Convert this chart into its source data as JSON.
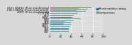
{
  "categories": [
    "303 / 303Se (Free-machining)",
    "416 / 416Se (Free-machining)",
    "430F (Free-machining)",
    "17-4 PH",
    "410",
    "440C",
    "430",
    "304",
    "316",
    "316L",
    "304L",
    "317",
    "321",
    "347"
  ],
  "series1_values": [
    78,
    70,
    68,
    52,
    45,
    42,
    58,
    45,
    40,
    40,
    38,
    35,
    36,
    36
  ],
  "series2_values": [
    55,
    50,
    0,
    0,
    0,
    0,
    0,
    28,
    26,
    25,
    0,
    0,
    0,
    0
  ],
  "series1_color": "#2a7b8c",
  "series2_color": "#909090",
  "series1_label": "Machinability rating",
  "series2_label": "Comparison",
  "xlim": [
    0,
    100
  ],
  "xticks": [
    0,
    20,
    40,
    60,
    80,
    100
  ],
  "background_color": "#d8d8d8",
  "bar_height": 0.38,
  "fontsize": 3.0,
  "legend_fontsize": 2.8
}
